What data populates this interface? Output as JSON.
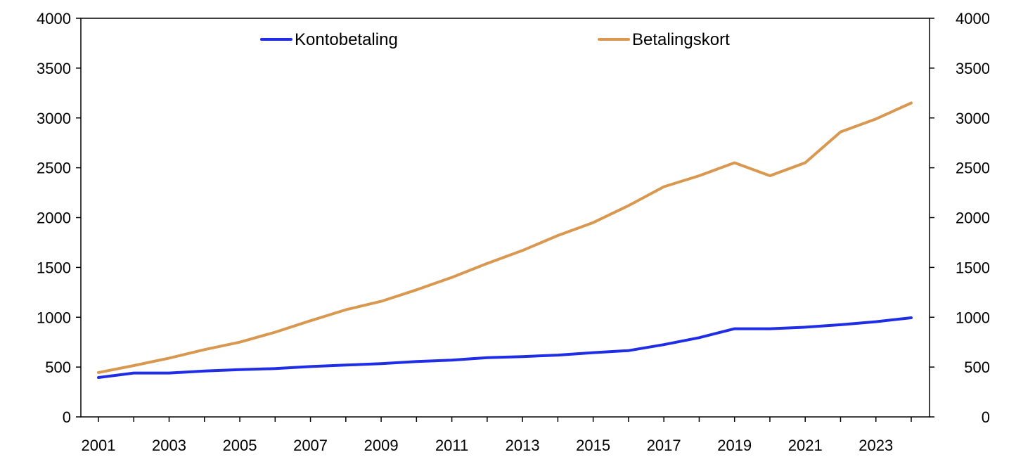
{
  "chart_data": {
    "type": "line",
    "title": "",
    "xlabel": "",
    "ylabel": "",
    "x": [
      2001,
      2002,
      2003,
      2004,
      2005,
      2006,
      2007,
      2008,
      2009,
      2010,
      2011,
      2012,
      2013,
      2014,
      2015,
      2016,
      2017,
      2018,
      2019,
      2020,
      2021,
      2022,
      2023,
      2024
    ],
    "x_tick_labels": [
      "2001",
      "2003",
      "2005",
      "2007",
      "2009",
      "2011",
      "2013",
      "2015",
      "2017",
      "2019",
      "2021",
      "2023"
    ],
    "ylim": [
      0,
      4000
    ],
    "y_ticks": [
      0,
      500,
      1000,
      1500,
      2000,
      2500,
      3000,
      3500,
      4000
    ],
    "secondary_ylim": [
      0,
      4000
    ],
    "grid": false,
    "legend_position": "top",
    "series": [
      {
        "name": "Kontobetaling",
        "color": "#1f2de6",
        "values": [
          395,
          440,
          440,
          460,
          475,
          485,
          505,
          520,
          535,
          555,
          570,
          595,
          605,
          620,
          645,
          665,
          725,
          795,
          885,
          885,
          900,
          925,
          955,
          995
        ]
      },
      {
        "name": "Betalingskort",
        "color": "#d9984f",
        "values": [
          445,
          515,
          590,
          675,
          750,
          850,
          965,
          1075,
          1160,
          1275,
          1400,
          1540,
          1670,
          1820,
          1950,
          2120,
          2310,
          2420,
          2550,
          2420,
          2550,
          2860,
          2990,
          3150
        ]
      }
    ]
  }
}
